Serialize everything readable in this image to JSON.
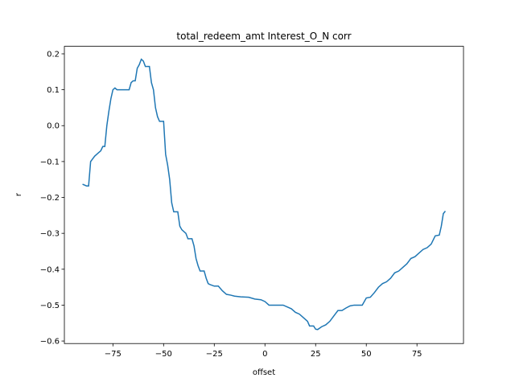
{
  "chart_data": {
    "type": "line",
    "title": "total_redeem_amt Interest_O_N corr",
    "x_label": "offset",
    "y_label": "r",
    "x": [
      -90,
      -88,
      -87,
      -86,
      -84,
      -82,
      -81,
      -80,
      -79,
      -78,
      -77,
      -76,
      -75,
      -74,
      -73,
      -70,
      -67,
      -66,
      -65,
      -64,
      -63,
      -62,
      -61,
      -60,
      -59,
      -57,
      -56,
      -55,
      -54,
      -53,
      -52,
      -50,
      -49,
      -48,
      -47,
      -46,
      -45,
      -43,
      -42,
      -41,
      -40,
      -39,
      -38,
      -36,
      -35,
      -34,
      -33,
      -32,
      -30,
      -29,
      -28,
      -27,
      -25,
      -23,
      -21,
      -19,
      -17,
      -15,
      -12,
      -8,
      -5,
      -2,
      0,
      2,
      5,
      9,
      11,
      13,
      15,
      17,
      19,
      21,
      22,
      24,
      25,
      26,
      28,
      30,
      32,
      34,
      36,
      38,
      40,
      42,
      44,
      48,
      50,
      52,
      54,
      56,
      58,
      60,
      62,
      64,
      66,
      68,
      70,
      72,
      74,
      76,
      78,
      80,
      82,
      84,
      86,
      87,
      88,
      89
    ],
    "series": [
      {
        "name": "corr",
        "color": "#1f77b4",
        "values": [
          -0.163,
          -0.168,
          -0.168,
          -0.1,
          -0.085,
          -0.075,
          -0.07,
          -0.058,
          -0.058,
          0.0,
          0.04,
          0.075,
          0.1,
          0.105,
          0.1,
          0.1,
          0.1,
          0.12,
          0.125,
          0.125,
          0.16,
          0.17,
          0.185,
          0.18,
          0.165,
          0.165,
          0.12,
          0.1,
          0.05,
          0.025,
          0.012,
          0.012,
          -0.08,
          -0.11,
          -0.15,
          -0.215,
          -0.24,
          -0.24,
          -0.28,
          -0.29,
          -0.295,
          -0.3,
          -0.315,
          -0.315,
          -0.335,
          -0.37,
          -0.39,
          -0.405,
          -0.405,
          -0.425,
          -0.44,
          -0.443,
          -0.447,
          -0.447,
          -0.46,
          -0.47,
          -0.472,
          -0.475,
          -0.477,
          -0.478,
          -0.483,
          -0.485,
          -0.49,
          -0.5,
          -0.5,
          -0.5,
          -0.505,
          -0.51,
          -0.52,
          -0.525,
          -0.535,
          -0.545,
          -0.558,
          -0.558,
          -0.567,
          -0.568,
          -0.56,
          -0.555,
          -0.545,
          -0.53,
          -0.515,
          -0.515,
          -0.508,
          -0.502,
          -0.5,
          -0.5,
          -0.48,
          -0.478,
          -0.465,
          -0.45,
          -0.44,
          -0.435,
          -0.425,
          -0.41,
          -0.405,
          -0.395,
          -0.385,
          -0.37,
          -0.365,
          -0.355,
          -0.345,
          -0.34,
          -0.33,
          -0.307,
          -0.305,
          -0.28,
          -0.245,
          -0.238
        ]
      }
    ],
    "xlim": [
      -98.95,
      97.95
    ],
    "ylim": [
      -0.607,
      0.221
    ],
    "xticks": [
      {
        "value": -75,
        "label": "−75"
      },
      {
        "value": -50,
        "label": "−50"
      },
      {
        "value": -25,
        "label": "−25"
      },
      0,
      25,
      50,
      75
    ],
    "yticks": [
      {
        "value": -0.6,
        "label": "−0.6"
      },
      {
        "value": -0.5,
        "label": "−0.5"
      },
      {
        "value": -0.4,
        "label": "−0.4"
      },
      {
        "value": -0.3,
        "label": "−0.3"
      },
      {
        "value": -0.2,
        "label": "−0.2"
      },
      {
        "value": -0.1,
        "label": "−0.1"
      },
      {
        "value": 0,
        "label": "0.0"
      },
      0.1,
      0.2
    ],
    "grid": false
  }
}
